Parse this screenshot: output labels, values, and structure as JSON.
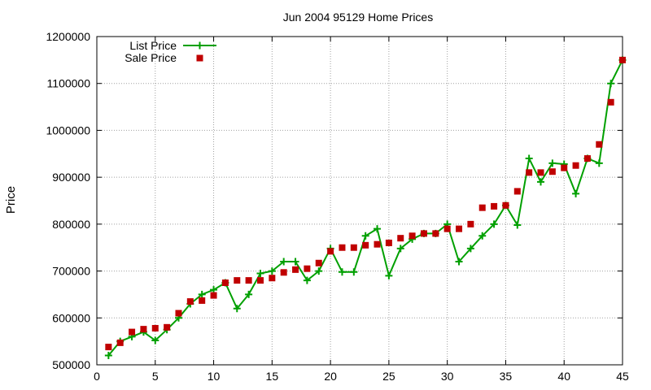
{
  "chart_data": {
    "type": "line",
    "title": "Jun 2004 95129 Home Prices",
    "xlabel": "",
    "ylabel": "Price",
    "xlim": [
      0,
      45
    ],
    "ylim": [
      500000,
      1200000
    ],
    "xticks": [
      0,
      5,
      10,
      15,
      20,
      25,
      30,
      35,
      40,
      45
    ],
    "yticks": [
      500000,
      600000,
      700000,
      800000,
      900000,
      1000000,
      1100000,
      1200000
    ],
    "grid": true,
    "legend_position": "top-left",
    "series": [
      {
        "name": "List Price",
        "style": "lines+plus-markers",
        "color": "#00a000",
        "x": [
          1,
          2,
          3,
          4,
          5,
          6,
          7,
          8,
          9,
          10,
          11,
          12,
          13,
          14,
          15,
          16,
          17,
          18,
          19,
          20,
          21,
          22,
          23,
          24,
          25,
          26,
          27,
          28,
          29,
          30,
          31,
          32,
          33,
          34,
          35,
          36,
          37,
          38,
          39,
          40,
          41,
          42,
          43,
          44,
          45
        ],
        "y": [
          520000,
          550000,
          560000,
          570000,
          552000,
          575000,
          600000,
          630000,
          650000,
          660000,
          675000,
          620000,
          650000,
          695000,
          700000,
          720000,
          720000,
          680000,
          700000,
          748000,
          698000,
          698000,
          775000,
          790000,
          690000,
          748000,
          768000,
          780000,
          780000,
          800000,
          720000,
          748000,
          775000,
          800000,
          840000,
          798000,
          940000,
          890000,
          930000,
          928000,
          865000,
          940000,
          930000,
          1100000,
          1150000
        ]
      },
      {
        "name": "Sale Price",
        "style": "square-markers",
        "color": "#c00000",
        "x": [
          1,
          2,
          3,
          4,
          5,
          6,
          7,
          8,
          9,
          10,
          11,
          12,
          13,
          14,
          15,
          16,
          17,
          18,
          19,
          20,
          21,
          22,
          23,
          24,
          25,
          26,
          27,
          28,
          29,
          30,
          31,
          32,
          33,
          34,
          35,
          36,
          37,
          38,
          39,
          40,
          41,
          42,
          43,
          44,
          45
        ],
        "y": [
          538000,
          547000,
          570000,
          576000,
          578000,
          580000,
          610000,
          635000,
          637000,
          648000,
          675000,
          680000,
          680000,
          680000,
          685000,
          697000,
          703000,
          705000,
          717000,
          742000,
          750000,
          750000,
          755000,
          757000,
          760000,
          770000,
          775000,
          780000,
          780000,
          790000,
          790000,
          800000,
          835000,
          838000,
          840000,
          870000,
          910000,
          910000,
          912000,
          920000,
          925000,
          940000,
          970000,
          1060000,
          1150000
        ]
      }
    ]
  }
}
